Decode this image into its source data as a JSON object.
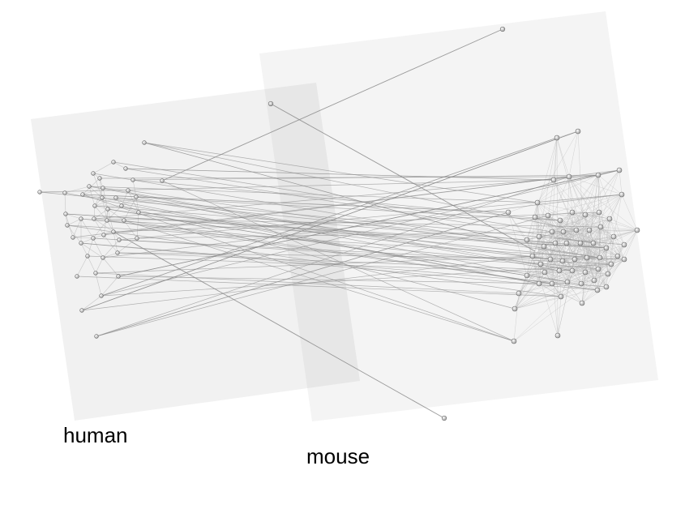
{
  "layers": [
    {
      "id": "human",
      "label": "human"
    },
    {
      "id": "mouse",
      "label": "mouse"
    }
  ],
  "colors": {
    "plane_fill": "#efefef",
    "plane_overlap": "#e3e3e3",
    "edge": "#8a8a8a",
    "intra_edge": "#b5b5b5",
    "node_fill": "#d2d2d2",
    "node_stroke": "#6e6e6e"
  }
}
